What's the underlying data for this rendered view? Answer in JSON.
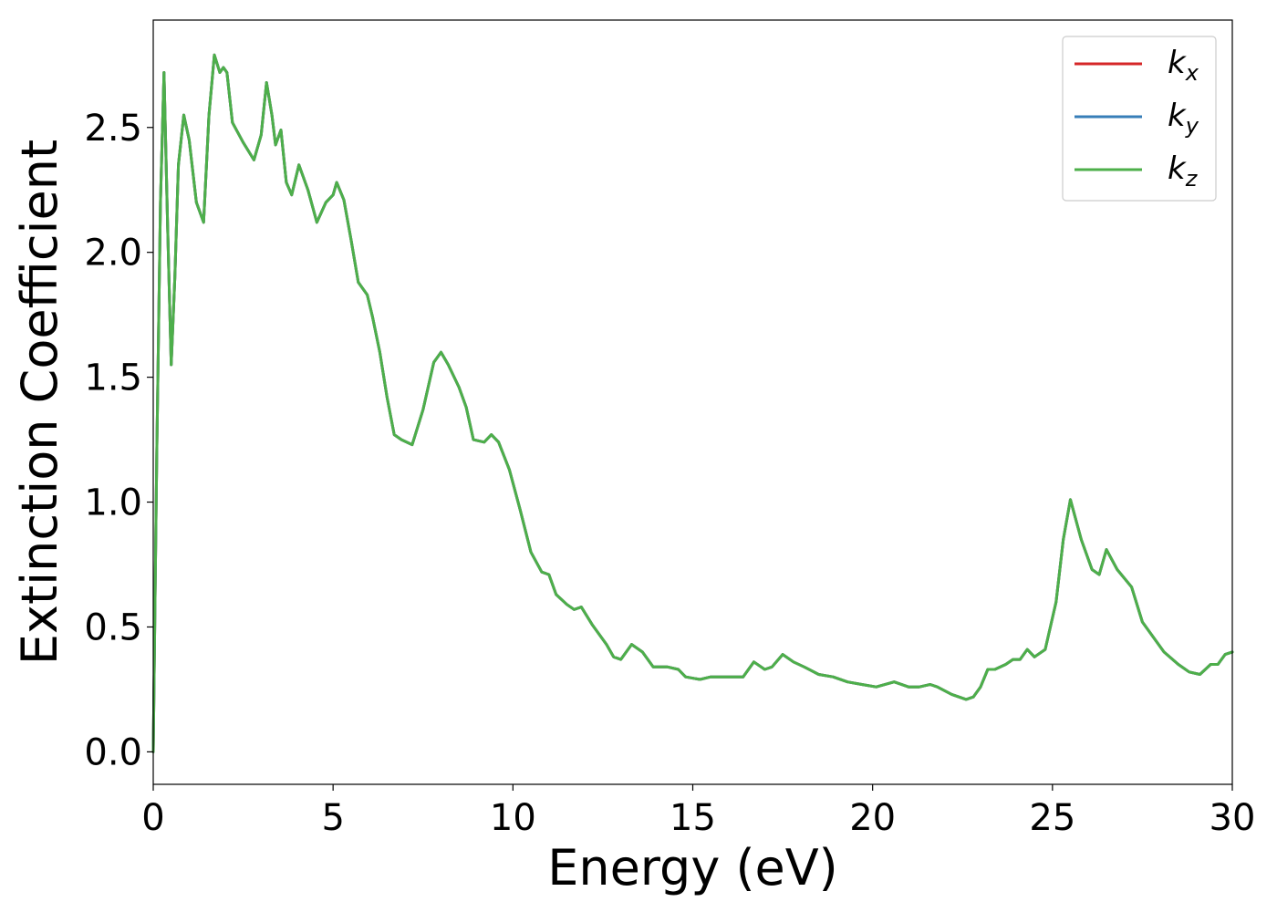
{
  "chart_data": {
    "type": "line",
    "title": "",
    "xlabel": "Energy (eV)",
    "ylabel": "Extinction Coefficient",
    "xlim": [
      0,
      30
    ],
    "ylim": [
      -0.13,
      2.93
    ],
    "xticks": [
      0,
      5,
      10,
      15,
      20,
      25,
      30
    ],
    "xtick_labels": [
      "0",
      "5",
      "10",
      "15",
      "20",
      "25",
      "30"
    ],
    "yticks": [
      0.0,
      0.5,
      1.0,
      1.5,
      2.0,
      2.5
    ],
    "ytick_labels": [
      "0.0",
      "0.5",
      "1.0",
      "1.5",
      "2.0",
      "2.5"
    ],
    "grid": false,
    "legend_position": "top-right",
    "x": [
      0.0,
      0.1,
      0.2,
      0.3,
      0.4,
      0.5,
      0.6,
      0.7,
      0.85,
      1.0,
      1.2,
      1.4,
      1.55,
      1.7,
      1.85,
      1.95,
      2.05,
      2.2,
      2.5,
      2.8,
      3.0,
      3.15,
      3.3,
      3.4,
      3.55,
      3.7,
      3.85,
      4.05,
      4.3,
      4.55,
      4.8,
      5.0,
      5.1,
      5.3,
      5.5,
      5.7,
      5.8,
      5.95,
      6.1,
      6.3,
      6.5,
      6.7,
      6.9,
      7.2,
      7.5,
      7.8,
      8.0,
      8.2,
      8.5,
      8.7,
      8.9,
      9.2,
      9.4,
      9.6,
      9.9,
      10.2,
      10.5,
      10.8,
      11.0,
      11.2,
      11.5,
      11.7,
      11.9,
      12.2,
      12.6,
      12.8,
      13.0,
      13.3,
      13.6,
      13.9,
      14.3,
      14.6,
      14.8,
      15.2,
      15.5,
      15.8,
      16.2,
      16.4,
      16.7,
      17.0,
      17.2,
      17.5,
      17.8,
      18.1,
      18.5,
      18.9,
      19.3,
      19.7,
      20.1,
      20.6,
      21.0,
      21.3,
      21.6,
      21.8,
      22.2,
      22.6,
      22.8,
      23.0,
      23.2,
      23.4,
      23.7,
      23.9,
      24.1,
      24.3,
      24.5,
      24.8,
      25.1,
      25.3,
      25.5,
      25.8,
      26.1,
      26.3,
      26.5,
      26.8,
      27.2,
      27.5,
      27.8,
      28.1,
      28.5,
      28.8,
      29.1,
      29.4,
      29.6,
      29.8,
      30.0
    ],
    "series": [
      {
        "name": "k_x",
        "name_base": "k",
        "name_sub": "x",
        "color": "#d62728",
        "y": [
          0.0,
          1.2,
          2.2,
          2.72,
          2.1,
          1.55,
          1.9,
          2.35,
          2.55,
          2.45,
          2.2,
          2.12,
          2.55,
          2.79,
          2.72,
          2.74,
          2.72,
          2.52,
          2.44,
          2.37,
          2.47,
          2.68,
          2.55,
          2.43,
          2.49,
          2.28,
          2.23,
          2.35,
          2.25,
          2.12,
          2.2,
          2.23,
          2.28,
          2.21,
          2.05,
          1.88,
          1.86,
          1.83,
          1.74,
          1.6,
          1.42,
          1.27,
          1.25,
          1.23,
          1.37,
          1.56,
          1.6,
          1.55,
          1.46,
          1.38,
          1.25,
          1.24,
          1.27,
          1.24,
          1.13,
          0.97,
          0.8,
          0.72,
          0.71,
          0.63,
          0.59,
          0.57,
          0.58,
          0.51,
          0.43,
          0.38,
          0.37,
          0.43,
          0.4,
          0.34,
          0.34,
          0.33,
          0.3,
          0.29,
          0.3,
          0.3,
          0.3,
          0.3,
          0.36,
          0.33,
          0.34,
          0.39,
          0.36,
          0.34,
          0.31,
          0.3,
          0.28,
          0.27,
          0.26,
          0.28,
          0.26,
          0.26,
          0.27,
          0.26,
          0.23,
          0.21,
          0.22,
          0.26,
          0.33,
          0.33,
          0.35,
          0.37,
          0.37,
          0.41,
          0.38,
          0.41,
          0.6,
          0.85,
          1.01,
          0.85,
          0.73,
          0.71,
          0.81,
          0.73,
          0.66,
          0.52,
          0.46,
          0.4,
          0.35,
          0.32,
          0.31,
          0.35,
          0.35,
          0.39,
          0.4
        ]
      },
      {
        "name": "k_y",
        "name_base": "k",
        "name_sub": "y",
        "color": "#377eb8",
        "y": [
          0.0,
          1.2,
          2.2,
          2.72,
          2.1,
          1.55,
          1.9,
          2.35,
          2.55,
          2.45,
          2.2,
          2.12,
          2.55,
          2.79,
          2.72,
          2.74,
          2.72,
          2.52,
          2.44,
          2.37,
          2.47,
          2.68,
          2.55,
          2.43,
          2.49,
          2.28,
          2.23,
          2.35,
          2.25,
          2.12,
          2.2,
          2.23,
          2.28,
          2.21,
          2.05,
          1.88,
          1.86,
          1.83,
          1.74,
          1.6,
          1.42,
          1.27,
          1.25,
          1.23,
          1.37,
          1.56,
          1.6,
          1.55,
          1.46,
          1.38,
          1.25,
          1.24,
          1.27,
          1.24,
          1.13,
          0.97,
          0.8,
          0.72,
          0.71,
          0.63,
          0.59,
          0.57,
          0.58,
          0.51,
          0.43,
          0.38,
          0.37,
          0.43,
          0.4,
          0.34,
          0.34,
          0.33,
          0.3,
          0.29,
          0.3,
          0.3,
          0.3,
          0.3,
          0.36,
          0.33,
          0.34,
          0.39,
          0.36,
          0.34,
          0.31,
          0.3,
          0.28,
          0.27,
          0.26,
          0.28,
          0.26,
          0.26,
          0.27,
          0.26,
          0.23,
          0.21,
          0.22,
          0.26,
          0.33,
          0.33,
          0.35,
          0.37,
          0.37,
          0.41,
          0.38,
          0.41,
          0.6,
          0.85,
          1.01,
          0.85,
          0.73,
          0.71,
          0.81,
          0.73,
          0.66,
          0.52,
          0.46,
          0.4,
          0.35,
          0.32,
          0.31,
          0.35,
          0.35,
          0.39,
          0.4
        ]
      },
      {
        "name": "k_z",
        "name_base": "k",
        "name_sub": "z",
        "color": "#4daf4a",
        "y": [
          0.0,
          1.2,
          2.2,
          2.72,
          2.1,
          1.55,
          1.9,
          2.35,
          2.55,
          2.45,
          2.2,
          2.12,
          2.55,
          2.79,
          2.72,
          2.74,
          2.72,
          2.52,
          2.44,
          2.37,
          2.47,
          2.68,
          2.55,
          2.43,
          2.49,
          2.28,
          2.23,
          2.35,
          2.25,
          2.12,
          2.2,
          2.23,
          2.28,
          2.21,
          2.05,
          1.88,
          1.86,
          1.83,
          1.74,
          1.6,
          1.42,
          1.27,
          1.25,
          1.23,
          1.37,
          1.56,
          1.6,
          1.55,
          1.46,
          1.38,
          1.25,
          1.24,
          1.27,
          1.24,
          1.13,
          0.97,
          0.8,
          0.72,
          0.71,
          0.63,
          0.59,
          0.57,
          0.58,
          0.51,
          0.43,
          0.38,
          0.37,
          0.43,
          0.4,
          0.34,
          0.34,
          0.33,
          0.3,
          0.29,
          0.3,
          0.3,
          0.3,
          0.3,
          0.36,
          0.33,
          0.34,
          0.39,
          0.36,
          0.34,
          0.31,
          0.3,
          0.28,
          0.27,
          0.26,
          0.28,
          0.26,
          0.26,
          0.27,
          0.26,
          0.23,
          0.21,
          0.22,
          0.26,
          0.33,
          0.33,
          0.35,
          0.37,
          0.37,
          0.41,
          0.38,
          0.41,
          0.6,
          0.85,
          1.01,
          0.85,
          0.73,
          0.71,
          0.81,
          0.73,
          0.66,
          0.52,
          0.46,
          0.4,
          0.35,
          0.32,
          0.31,
          0.35,
          0.35,
          0.39,
          0.4
        ]
      }
    ]
  }
}
